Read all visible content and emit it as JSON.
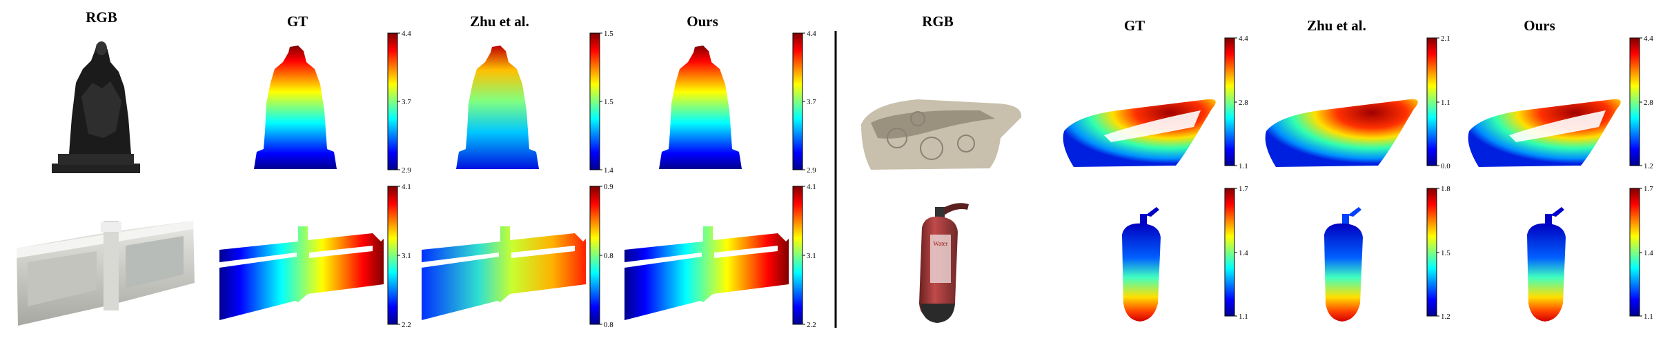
{
  "figure": {
    "left_group": {
      "column_titles": [
        "RGB",
        "GT",
        "Zhu et al.",
        "Ours"
      ],
      "rows": [
        {
          "subject": "statue",
          "colorbars": [
            {
              "max": "4.4",
              "mid": "3.7",
              "min": "2.9"
            },
            {
              "max": "1.5",
              "mid": "1.5",
              "min": "1.4"
            },
            {
              "max": "4.4",
              "mid": "3.7",
              "min": "2.9"
            }
          ]
        },
        {
          "subject": "railing",
          "colorbars": [
            {
              "max": "4.1",
              "mid": "3.1",
              "min": "2.2"
            },
            {
              "max": "0.9",
              "mid": "0.8",
              "min": "0.8"
            },
            {
              "max": "4.1",
              "mid": "3.1",
              "min": "2.2"
            }
          ]
        }
      ]
    },
    "right_group": {
      "column_titles": [
        "RGB",
        "GT",
        "Zhu et al.",
        "Ours"
      ],
      "rows": [
        {
          "subject": "bathtub",
          "colorbars": [
            {
              "max": "4.4",
              "mid": "2.8",
              "min": "1.1"
            },
            {
              "max": "2.1",
              "mid": "1.1",
              "min": "0.0"
            },
            {
              "max": "4.4",
              "mid": "2.8",
              "min": "1.2"
            }
          ]
        },
        {
          "subject": "fire-extinguisher",
          "label_text": "Water",
          "colorbars": [
            {
              "max": "1.7",
              "mid": "1.4",
              "min": "1.1"
            },
            {
              "max": "1.8",
              "mid": "1.5",
              "min": "1.2"
            },
            {
              "max": "1.7",
              "mid": "1.4",
              "min": "1.1"
            }
          ]
        }
      ]
    },
    "colors": {
      "jet_low": "#00008f",
      "jet_high": "#800000",
      "divider": "#000000"
    }
  }
}
